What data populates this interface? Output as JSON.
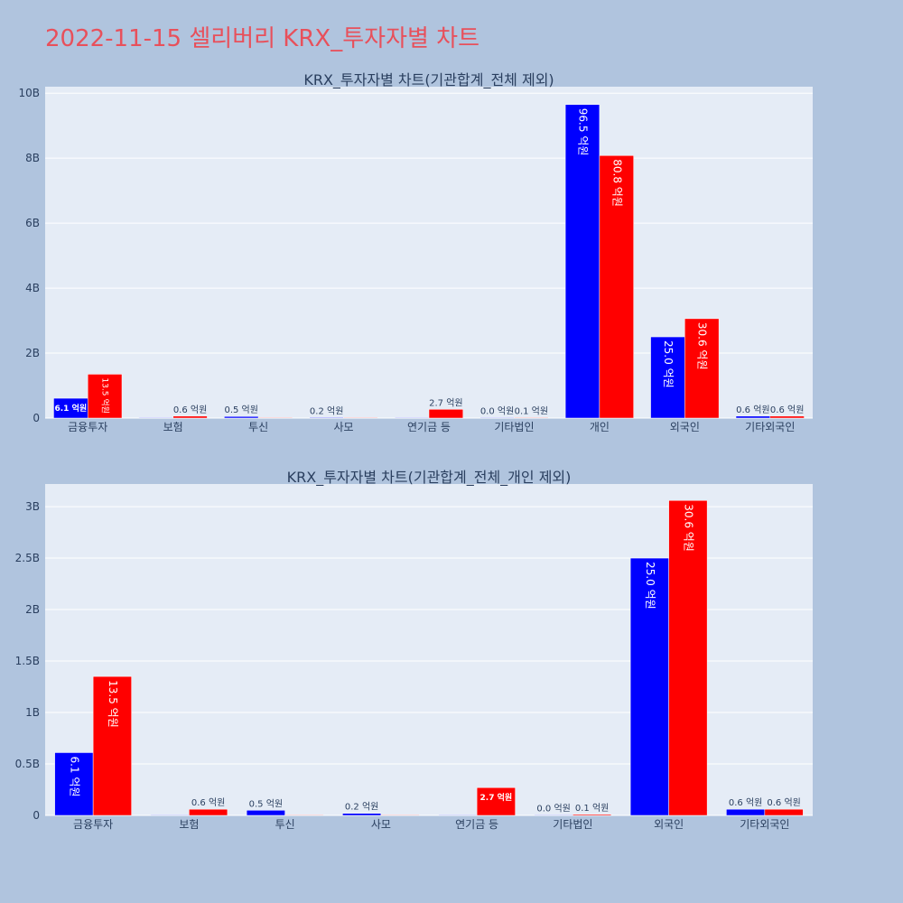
{
  "page_title": "2022-11-15 셀리버리 KRX_투자자별 차트",
  "colors": {
    "buy": "#0000ff",
    "sell": "#ff0000",
    "plot_bg": "#e5ecf6",
    "page_bg": "#b0c4de",
    "title": "#e8505b"
  },
  "chart_data": [
    {
      "type": "bar",
      "title": "KRX_투자자별 차트(기관합계_전체 제외)",
      "categories": [
        "금융투자",
        "보험",
        "투신",
        "사모",
        "연기금 등",
        "기타법인",
        "개인",
        "외국인",
        "기타외국인"
      ],
      "series": [
        {
          "color": "#0000ff",
          "values": [
            0.61,
            0.0,
            0.05,
            0.02,
            0.0,
            0.0,
            9.65,
            2.5,
            0.06
          ]
        },
        {
          "color": "#ff0000",
          "values": [
            1.35,
            0.06,
            0.0,
            0.0,
            0.27,
            0.01,
            8.08,
            3.06,
            0.06
          ]
        }
      ],
      "labels": [
        [
          "6.1 억원",
          "",
          "0.5 억원",
          "0.2 억원",
          "",
          "0.0 억원",
          "96.5 억원",
          "25.0 억원",
          "0.6 억원"
        ],
        [
          "13.5 억원",
          "0.6 억원",
          "",
          "",
          "2.7 억원",
          "0.1 억원",
          "80.8 억원",
          "30.6 억원",
          "0.6 억원"
        ]
      ],
      "label_style": [
        [
          "in-h",
          "",
          "out",
          "out",
          "",
          "out",
          "in-v",
          "in-v",
          "out"
        ],
        [
          "in-vs",
          "out",
          "",
          "",
          "out",
          "out",
          "in-v",
          "in-v",
          "out"
        ]
      ],
      "yticks": [
        0,
        2,
        4,
        6,
        8,
        10
      ],
      "ytick_labels": [
        "0",
        "2B",
        "4B",
        "6B",
        "8B",
        "10B"
      ],
      "ylim": [
        0,
        10.2
      ],
      "grid": true
    },
    {
      "type": "bar",
      "title": "KRX_투자자별 차트(기관합계_전체_개인 제외)",
      "categories": [
        "금융투자",
        "보험",
        "투신",
        "사모",
        "연기금 등",
        "기타법인",
        "외국인",
        "기타외국인"
      ],
      "series": [
        {
          "color": "#0000ff",
          "values": [
            0.61,
            0.0,
            0.05,
            0.02,
            0.0,
            0.0,
            2.5,
            0.06
          ]
        },
        {
          "color": "#ff0000",
          "values": [
            1.35,
            0.06,
            0.0,
            0.0,
            0.27,
            0.01,
            3.06,
            0.06
          ]
        }
      ],
      "labels": [
        [
          "6.1 억원",
          "",
          "0.5 억원",
          "0.2 억원",
          "",
          "0.0 억원",
          "25.0 억원",
          "0.6 억원"
        ],
        [
          "13.5 억원",
          "0.6 억원",
          "",
          "",
          "2.7 억원",
          "0.1 억원",
          "30.6 억원",
          "0.6 억원"
        ]
      ],
      "label_style": [
        [
          "in-v",
          "",
          "out",
          "out",
          "",
          "out",
          "in-v",
          "out"
        ],
        [
          "in-v",
          "out",
          "",
          "",
          "in-h",
          "out",
          "in-v",
          "out"
        ]
      ],
      "yticks": [
        0,
        0.5,
        1,
        1.5,
        2,
        2.5,
        3
      ],
      "ytick_labels": [
        "0",
        "0.5B",
        "1B",
        "1.5B",
        "2B",
        "2.5B",
        "3B"
      ],
      "ylim": [
        0,
        3.22
      ],
      "grid": true
    }
  ]
}
